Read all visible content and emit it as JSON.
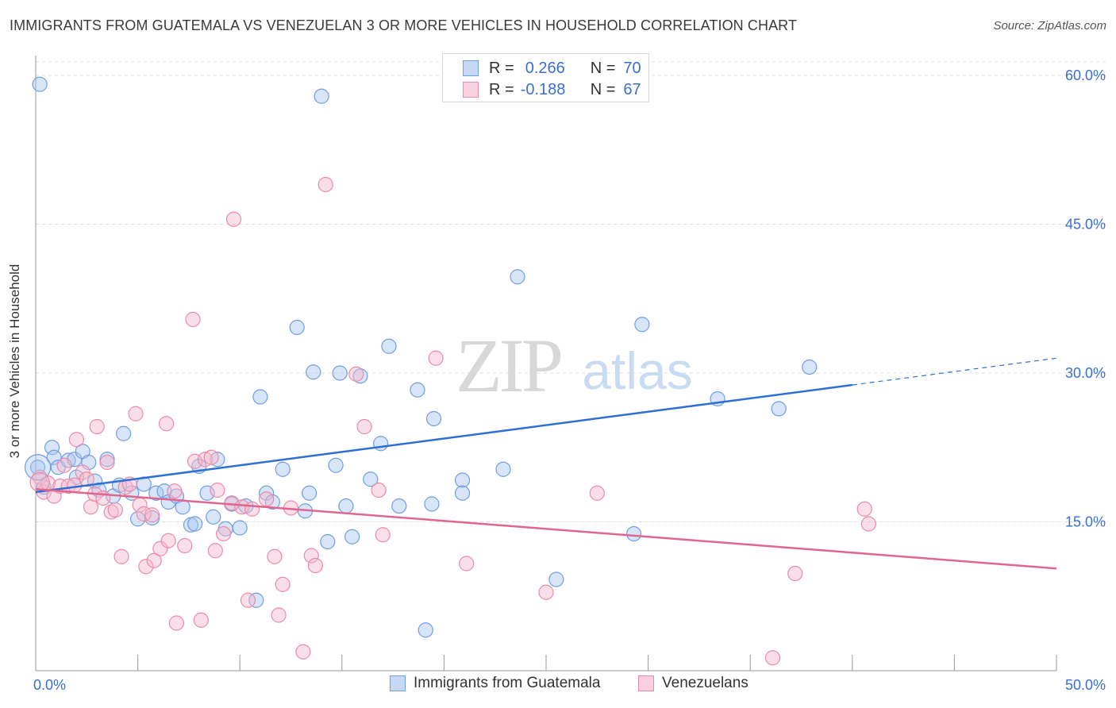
{
  "title": "IMMIGRANTS FROM GUATEMALA VS VENEZUELAN 3 OR MORE VEHICLES IN HOUSEHOLD CORRELATION CHART",
  "source": "Source: ZipAtlas.com",
  "watermark": {
    "zip": "ZIP",
    "atlas": "atlas"
  },
  "legend_top": {
    "rows": [
      {
        "r_label": "R =",
        "r_value": "0.266",
        "n_label": "N =",
        "n_value": "70"
      },
      {
        "r_label": "R =",
        "r_value": "-0.188",
        "n_label": "N =",
        "n_value": "67"
      }
    ]
  },
  "legend_bottom": {
    "items": [
      "Immigrants from Guatemala",
      "Venezuelans"
    ]
  },
  "colors": {
    "blue_fill": "#a9c6f0",
    "blue_stroke": "#6f9de0",
    "blue_line": "#2d6fd4",
    "pink_fill": "#f6b8cc",
    "pink_stroke": "#e98aa9",
    "pink_line": "#e0668f",
    "axis_text": "#3a6fd0",
    "grid": "#dcdcdc"
  },
  "chart_data": {
    "type": "scatter",
    "title": "IMMIGRANTS FROM GUATEMALA VS VENEZUELAN 3 OR MORE VEHICLES IN HOUSEHOLD CORRELATION CHART",
    "xlabel": "",
    "ylabel": "3 or more Vehicles in Household",
    "xlim": [
      0,
      50
    ],
    "ylim": [
      0,
      62
    ],
    "x_tick_labels": [
      "0.0%",
      "50.0%"
    ],
    "y_ticks": [
      15,
      30,
      45,
      60
    ],
    "y_tick_labels": [
      "15.0%",
      "30.0%",
      "45.0%",
      "60.0%"
    ],
    "grid": "horizontal dashed",
    "legend": "top-center",
    "series": [
      {
        "name": "Immigrants from Guatemala",
        "color": "#a9c6f0",
        "points": [
          [
            0.1,
            20.5
          ],
          [
            0.4,
            18.5
          ],
          [
            0.8,
            22.5
          ],
          [
            0.9,
            21.5
          ],
          [
            1.1,
            20.5
          ],
          [
            1.6,
            21.2
          ],
          [
            1.9,
            21.3
          ],
          [
            2.0,
            19.5
          ],
          [
            2.3,
            22.1
          ],
          [
            2.6,
            21.0
          ],
          [
            2.9,
            19.1
          ],
          [
            3.1,
            18.2
          ],
          [
            3.5,
            21.3
          ],
          [
            3.8,
            17.6
          ],
          [
            4.1,
            18.7
          ],
          [
            4.3,
            23.9
          ],
          [
            4.7,
            17.9
          ],
          [
            5.0,
            15.3
          ],
          [
            5.3,
            18.8
          ],
          [
            5.7,
            15.4
          ],
          [
            5.9,
            17.9
          ],
          [
            6.3,
            18.1
          ],
          [
            6.5,
            17.0
          ],
          [
            6.9,
            17.6
          ],
          [
            7.2,
            16.5
          ],
          [
            7.6,
            14.7
          ],
          [
            7.8,
            14.8
          ],
          [
            8.0,
            20.6
          ],
          [
            8.4,
            17.9
          ],
          [
            8.7,
            15.5
          ],
          [
            8.9,
            21.3
          ],
          [
            9.3,
            14.3
          ],
          [
            9.6,
            16.8
          ],
          [
            10.0,
            14.4
          ],
          [
            10.3,
            16.6
          ],
          [
            10.8,
            7.1
          ],
          [
            11.0,
            27.6
          ],
          [
            11.3,
            17.9
          ],
          [
            11.6,
            17.0
          ],
          [
            12.1,
            20.3
          ],
          [
            12.8,
            34.6
          ],
          [
            13.2,
            16.1
          ],
          [
            13.4,
            17.9
          ],
          [
            13.6,
            30.1
          ],
          [
            14.0,
            57.9
          ],
          [
            14.3,
            13.0
          ],
          [
            14.7,
            20.7
          ],
          [
            14.9,
            30.0
          ],
          [
            15.2,
            16.6
          ],
          [
            15.5,
            13.5
          ],
          [
            15.9,
            29.7
          ],
          [
            16.4,
            19.3
          ],
          [
            16.9,
            22.9
          ],
          [
            17.3,
            32.7
          ],
          [
            17.8,
            16.6
          ],
          [
            18.7,
            28.3
          ],
          [
            19.1,
            4.1
          ],
          [
            19.4,
            16.8
          ],
          [
            19.5,
            25.4
          ],
          [
            20.9,
            19.2
          ],
          [
            20.9,
            17.9
          ],
          [
            22.9,
            20.3
          ],
          [
            23.6,
            39.7
          ],
          [
            25.5,
            9.2
          ],
          [
            29.3,
            13.8
          ],
          [
            29.7,
            34.9
          ],
          [
            33.4,
            27.4
          ],
          [
            36.4,
            26.4
          ],
          [
            37.9,
            30.6
          ],
          [
            0.2,
            59.1
          ]
        ]
      },
      {
        "name": "Venezuelans",
        "color": "#f6b8cc",
        "points": [
          [
            0.2,
            19.5
          ],
          [
            0.4,
            18.0
          ],
          [
            0.6,
            18.9
          ],
          [
            0.9,
            17.6
          ],
          [
            1.2,
            18.6
          ],
          [
            1.4,
            20.7
          ],
          [
            1.6,
            18.6
          ],
          [
            1.9,
            18.7
          ],
          [
            2.0,
            23.3
          ],
          [
            2.3,
            20.0
          ],
          [
            2.5,
            19.3
          ],
          [
            2.7,
            16.5
          ],
          [
            2.9,
            17.8
          ],
          [
            3.0,
            24.6
          ],
          [
            3.3,
            17.4
          ],
          [
            3.5,
            21.0
          ],
          [
            3.7,
            16.0
          ],
          [
            3.9,
            16.2
          ],
          [
            4.2,
            11.5
          ],
          [
            4.4,
            18.5
          ],
          [
            4.6,
            18.8
          ],
          [
            4.9,
            25.9
          ],
          [
            5.1,
            16.7
          ],
          [
            5.3,
            15.8
          ],
          [
            5.4,
            10.5
          ],
          [
            5.7,
            15.7
          ],
          [
            5.8,
            11.1
          ],
          [
            6.1,
            12.3
          ],
          [
            6.4,
            24.9
          ],
          [
            6.5,
            13.1
          ],
          [
            6.8,
            18.1
          ],
          [
            6.9,
            4.8
          ],
          [
            7.3,
            12.6
          ],
          [
            7.7,
            35.4
          ],
          [
            7.8,
            21.1
          ],
          [
            8.1,
            5.1
          ],
          [
            8.3,
            21.3
          ],
          [
            8.6,
            21.5
          ],
          [
            8.8,
            12.1
          ],
          [
            8.9,
            18.2
          ],
          [
            9.2,
            13.8
          ],
          [
            9.6,
            16.9
          ],
          [
            9.7,
            45.5
          ],
          [
            10.1,
            16.5
          ],
          [
            10.4,
            7.1
          ],
          [
            10.6,
            16.3
          ],
          [
            11.3,
            17.3
          ],
          [
            11.7,
            11.5
          ],
          [
            11.9,
            5.6
          ],
          [
            12.1,
            8.7
          ],
          [
            12.5,
            16.4
          ],
          [
            13.1,
            1.9
          ],
          [
            13.5,
            11.6
          ],
          [
            13.7,
            10.6
          ],
          [
            14.2,
            49.0
          ],
          [
            15.7,
            29.9
          ],
          [
            16.1,
            24.6
          ],
          [
            16.8,
            18.2
          ],
          [
            17.0,
            13.7
          ],
          [
            19.6,
            31.5
          ],
          [
            21.1,
            10.8
          ],
          [
            25.0,
            7.9
          ],
          [
            27.5,
            17.9
          ],
          [
            36.1,
            1.3
          ],
          [
            37.2,
            9.8
          ],
          [
            40.6,
            16.3
          ],
          [
            40.8,
            14.8
          ]
        ]
      }
    ],
    "trend_lines": [
      {
        "series": "Immigrants from Guatemala",
        "x": [
          0,
          50
        ],
        "y": [
          18.0,
          31.5
        ],
        "solid_to_x": 40
      },
      {
        "series": "Venezuelans",
        "x": [
          0,
          50
        ],
        "y": [
          18.3,
          10.3
        ]
      }
    ]
  }
}
